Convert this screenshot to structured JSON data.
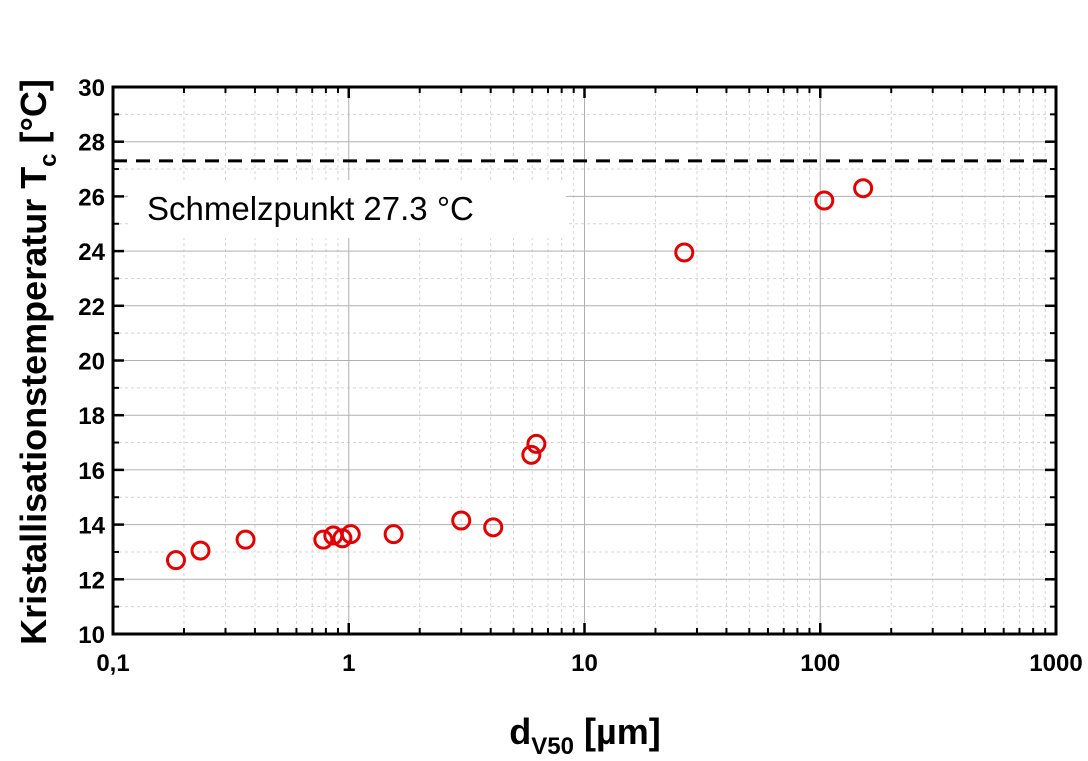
{
  "chart_data": {
    "type": "scatter",
    "x_scale": "log",
    "x_range": [
      0.1,
      1000
    ],
    "y_range": [
      10,
      30
    ],
    "x_ticks": [
      {
        "value": 0.1,
        "label": "0,1"
      },
      {
        "value": 1,
        "label": "1"
      },
      {
        "value": 10,
        "label": "10"
      },
      {
        "value": 100,
        "label": "100"
      },
      {
        "value": 1000,
        "label": "1000"
      }
    ],
    "y_ticks": [
      {
        "value": 10,
        "label": "10"
      },
      {
        "value": 12,
        "label": "12"
      },
      {
        "value": 14,
        "label": "14"
      },
      {
        "value": 16,
        "label": "16"
      },
      {
        "value": 18,
        "label": "18"
      },
      {
        "value": 20,
        "label": "20"
      },
      {
        "value": 22,
        "label": "22"
      },
      {
        "value": 24,
        "label": "24"
      },
      {
        "value": 26,
        "label": "26"
      },
      {
        "value": 28,
        "label": "28"
      },
      {
        "value": 30,
        "label": "30"
      }
    ],
    "xlabel": {
      "main": "d",
      "sub": "V50",
      "unit": " [µm]"
    },
    "ylabel": {
      "main": "Kristallisationstemperatur T",
      "sub": "c",
      "unit": " [°C]"
    },
    "grid": true,
    "marker_color": "#e00000",
    "series": [
      {
        "points": [
          {
            "x": 0.185,
            "y": 12.7
          },
          {
            "x": 0.235,
            "y": 13.05
          },
          {
            "x": 0.365,
            "y": 13.45
          },
          {
            "x": 0.78,
            "y": 13.45
          },
          {
            "x": 0.86,
            "y": 13.6
          },
          {
            "x": 0.94,
            "y": 13.5
          },
          {
            "x": 1.02,
            "y": 13.65
          },
          {
            "x": 1.55,
            "y": 13.65
          },
          {
            "x": 3.0,
            "y": 14.15
          },
          {
            "x": 4.1,
            "y": 13.9
          },
          {
            "x": 5.95,
            "y": 16.55
          },
          {
            "x": 6.25,
            "y": 16.95
          },
          {
            "x": 26.5,
            "y": 23.95
          },
          {
            "x": 104,
            "y": 25.85
          },
          {
            "x": 152,
            "y": 26.3
          }
        ]
      }
    ],
    "reference_line": {
      "y": 27.3,
      "style": "dashed",
      "label": "Schmelzpunkt 27.3 °C"
    }
  }
}
